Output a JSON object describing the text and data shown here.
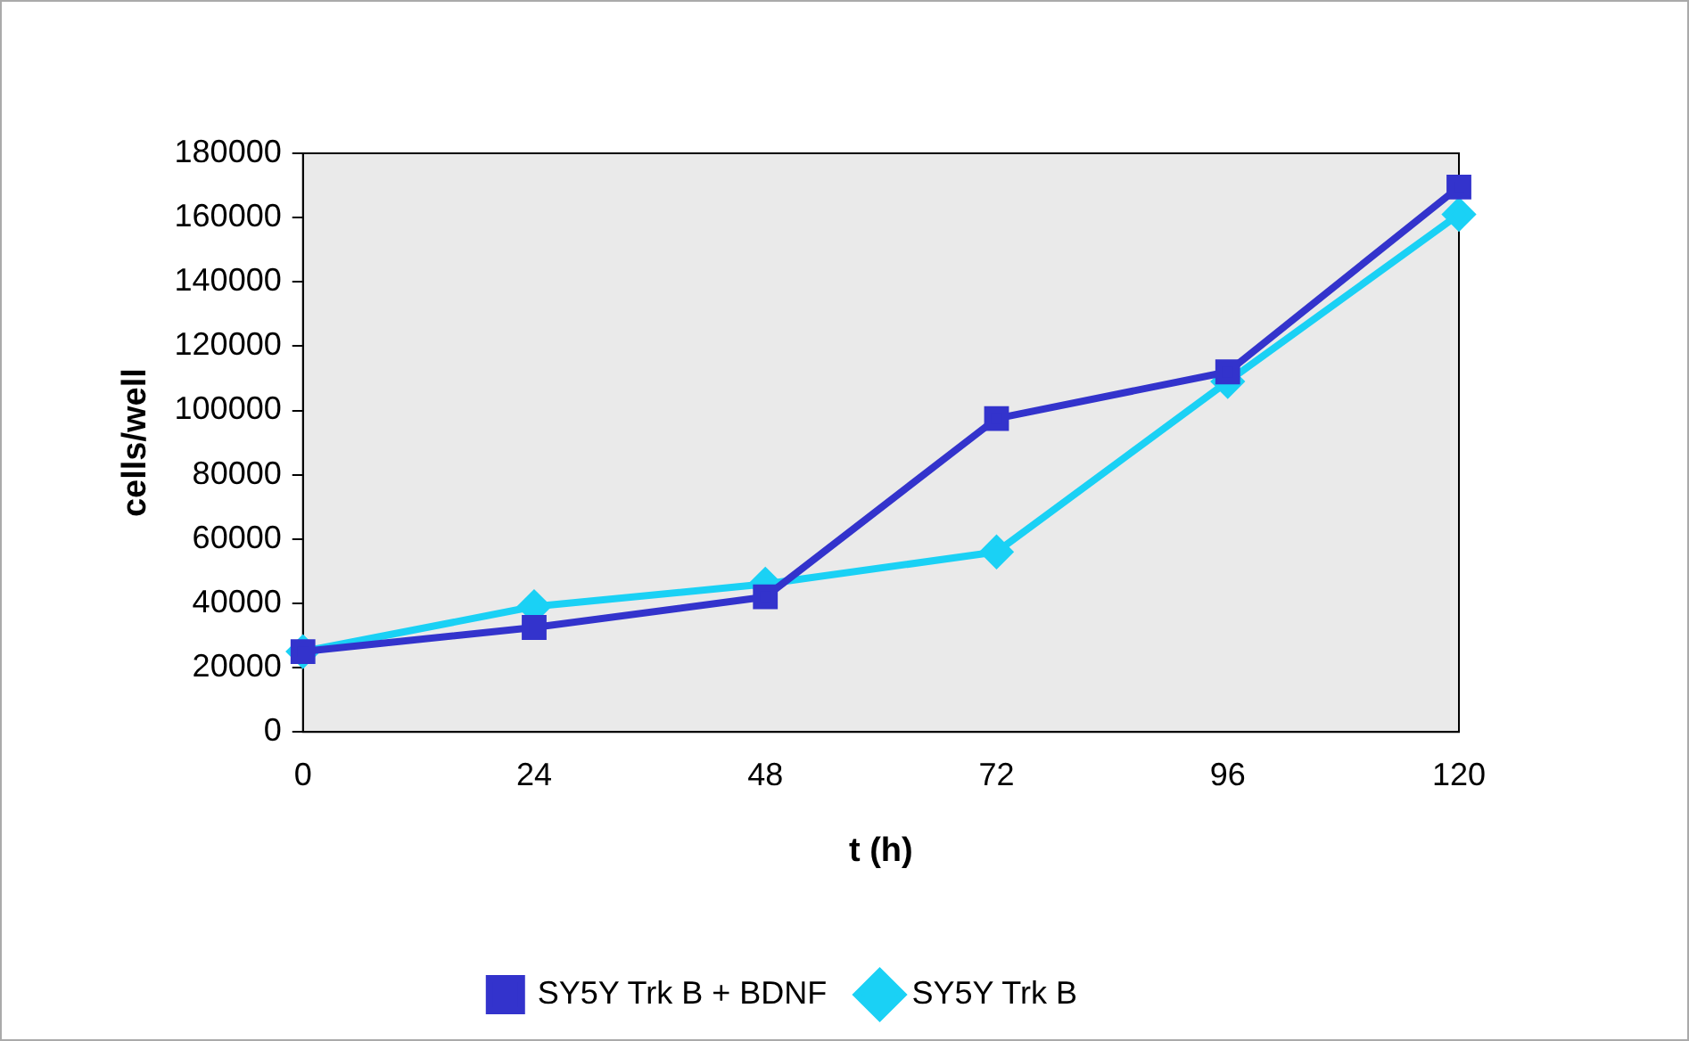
{
  "chart_data": {
    "type": "line",
    "xlabel": "t (h)",
    "ylabel": "cells/well",
    "categories": [
      "0",
      "24",
      "48",
      "72",
      "96",
      "120"
    ],
    "series": [
      {
        "name": "SY5Y Trk B",
        "color": "#1ad1f5",
        "marker": "diamond",
        "values": [
          25000,
          39000,
          46000,
          56000,
          109000,
          161000
        ]
      },
      {
        "name": "SY5Y Trk B + BDNF",
        "color": "#3333cc",
        "marker": "square",
        "values": [
          25000,
          32500,
          42000,
          97500,
          112000,
          169500
        ]
      }
    ],
    "ylim": [
      0,
      180000
    ],
    "yticks": [
      0,
      20000,
      40000,
      60000,
      80000,
      100000,
      120000,
      140000,
      160000,
      180000
    ],
    "grid": false,
    "legend": "bottom",
    "line_style": "solid"
  }
}
